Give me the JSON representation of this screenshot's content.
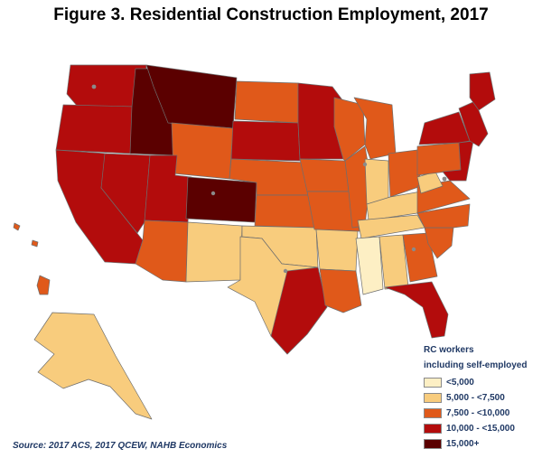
{
  "title": "Figure 3. Residential Construction Employment, 2017",
  "legend": {
    "title_line1": "RC workers",
    "title_line2": "including self-employed",
    "items": [
      {
        "label": "<5,000",
        "color": "#fdefc4"
      },
      {
        "label": "5,000 - <7,500",
        "color": "#f8cc7d"
      },
      {
        "label": "7,500 - <10,000",
        "color": "#e0591a"
      },
      {
        "label": "10,000 - <15,000",
        "color": "#b30c0c"
      },
      {
        "label": "15,000+",
        "color": "#5b0000"
      }
    ]
  },
  "source": "Source: 2017 ACS, 2017 QCEW, NAHB Economics",
  "border_color": "#6e6e6e"
}
